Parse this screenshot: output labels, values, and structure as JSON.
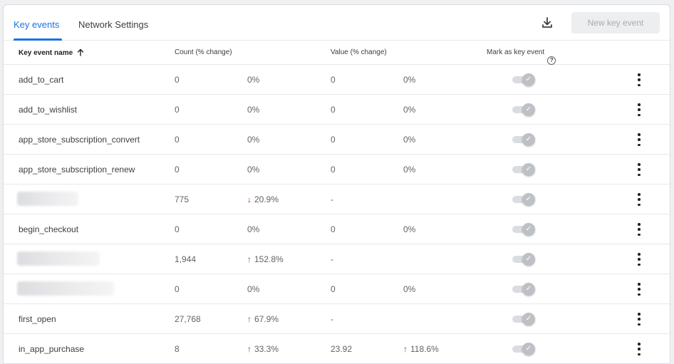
{
  "tabs": [
    {
      "label": "Key events",
      "active": true
    },
    {
      "label": "Network Settings",
      "active": false
    }
  ],
  "toolbar": {
    "download_icon": "download-icon",
    "new_button_label": "New key event"
  },
  "columns": {
    "name": "Key event name",
    "name_sort_icon": "arrow-up-icon",
    "count": "Count (% change)",
    "value": "Value (% change)",
    "mark": "Mark as key event",
    "mark_help_icon": "help-circle-icon"
  },
  "colors": {
    "accent": "#1a73e8",
    "up": "#188038",
    "down": "#c5221f"
  },
  "rows": [
    {
      "name": "add_to_cart",
      "count": "0",
      "count_change": "0%",
      "count_trend": "none",
      "value": "0",
      "value_change": "0%",
      "value_trend": "none"
    },
    {
      "name": "add_to_wishlist",
      "count": "0",
      "count_change": "0%",
      "count_trend": "none",
      "value": "0",
      "value_change": "0%",
      "value_trend": "none"
    },
    {
      "name": "app_store_subscription_convert",
      "count": "0",
      "count_change": "0%",
      "count_trend": "none",
      "value": "0",
      "value_change": "0%",
      "value_trend": "none"
    },
    {
      "name": "app_store_subscription_renew",
      "count": "0",
      "count_change": "0%",
      "count_trend": "none",
      "value": "0",
      "value_change": "0%",
      "value_trend": "none"
    },
    {
      "name": "",
      "redacted": true,
      "count": "775",
      "count_change": "20.9%",
      "count_trend": "down",
      "value": "-",
      "value_change": "",
      "value_trend": "none"
    },
    {
      "name": "begin_checkout",
      "count": "0",
      "count_change": "0%",
      "count_trend": "none",
      "value": "0",
      "value_change": "0%",
      "value_trend": "none"
    },
    {
      "name": "",
      "redacted": true,
      "count": "1,944",
      "count_change": "152.8%",
      "count_trend": "up",
      "value": "-",
      "value_change": "",
      "value_trend": "none"
    },
    {
      "name": "",
      "redacted": true,
      "count": "0",
      "count_change": "0%",
      "count_trend": "none",
      "value": "0",
      "value_change": "0%",
      "value_trend": "none"
    },
    {
      "name": "first_open",
      "count": "27,768",
      "count_change": "67.9%",
      "count_trend": "up",
      "value": "-",
      "value_change": "",
      "value_trend": "none"
    },
    {
      "name": "in_app_purchase",
      "count": "8",
      "count_change": "33.3%",
      "count_trend": "up",
      "value": "23.92",
      "value_change": "118.6%",
      "value_trend": "up"
    }
  ]
}
